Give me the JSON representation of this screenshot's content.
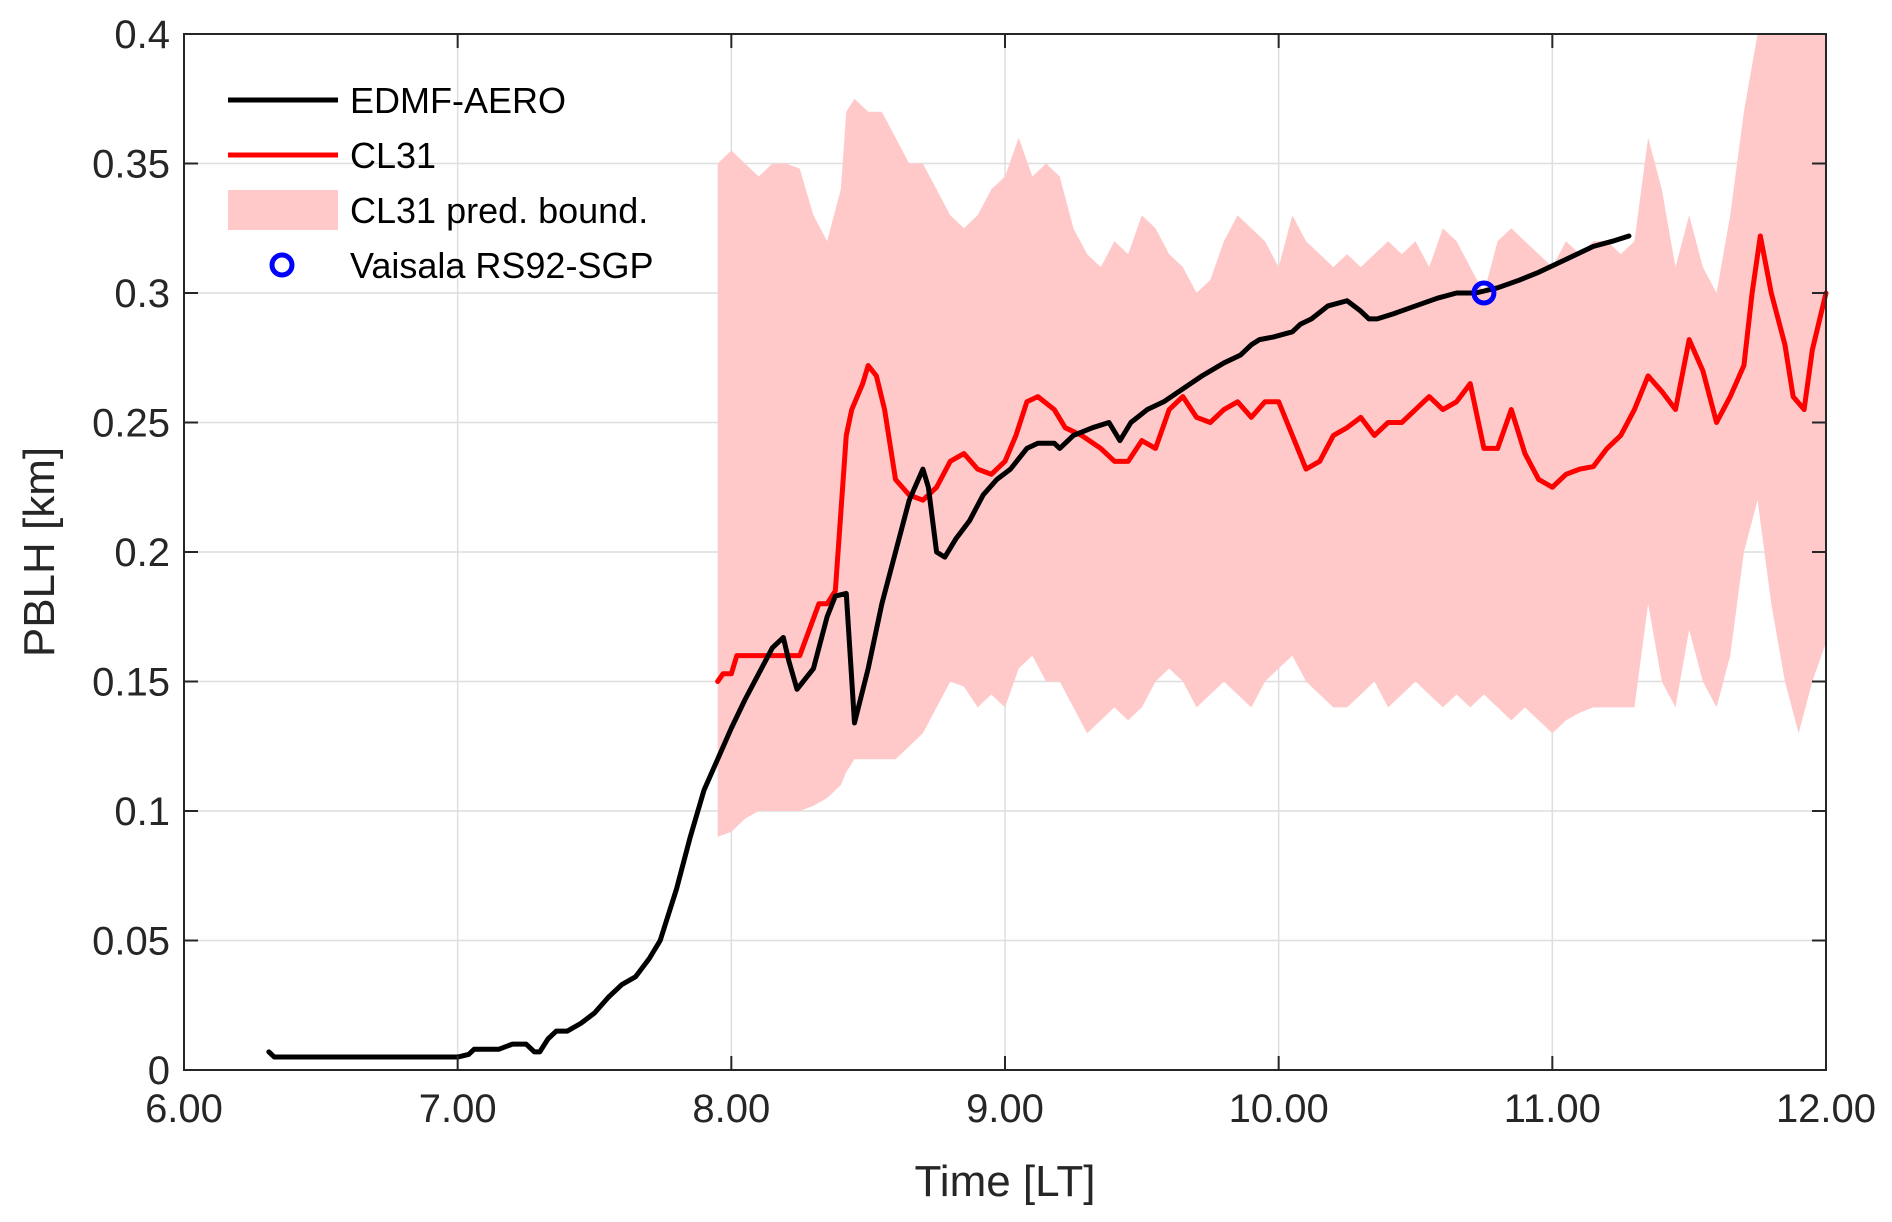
{
  "chart_data": {
    "type": "line",
    "title": "",
    "xlabel": "Time [LT]",
    "ylabel": "PBLH [km]",
    "xlim": [
      6,
      12
    ],
    "ylim": [
      0,
      0.4
    ],
    "grid": true,
    "legend_position": "top-left",
    "x_ticks": [
      6,
      7,
      8,
      9,
      10,
      11,
      12
    ],
    "x_tick_labels": [
      "6.00",
      "7.00",
      "8.00",
      "9.00",
      "10.00",
      "11.00",
      "12.00"
    ],
    "y_ticks": [
      0,
      0.05,
      0.1,
      0.15,
      0.2,
      0.25,
      0.3,
      0.35,
      0.4
    ],
    "y_tick_labels": [
      "0",
      "0.05",
      "0.1",
      "0.15",
      "0.2",
      "0.25",
      "0.3",
      "0.35",
      "0.4"
    ],
    "colors": {
      "edmf": "#000000",
      "cl31": "#ff0000",
      "band": "#ffc9c9",
      "rs92": "#0000ff",
      "grid": "#dedede",
      "axis": "#262626"
    },
    "legend": [
      {
        "key": "edmf",
        "label": "EDMF-AERO",
        "kind": "line"
      },
      {
        "key": "cl31",
        "label": "CL31",
        "kind": "line"
      },
      {
        "key": "band",
        "label": "CL31 pred. bound.",
        "kind": "patch"
      },
      {
        "key": "rs92",
        "label": "Vaisala RS92-SGP",
        "kind": "marker"
      }
    ],
    "series": [
      {
        "key": "edmf",
        "name": "EDMF-AERO",
        "x": [
          6.31,
          6.33,
          6.5,
          6.7,
          6.9,
          7.0,
          7.04,
          7.06,
          7.15,
          7.2,
          7.25,
          7.28,
          7.3,
          7.33,
          7.36,
          7.4,
          7.45,
          7.5,
          7.55,
          7.6,
          7.65,
          7.7,
          7.74,
          7.8,
          7.85,
          7.9,
          7.95,
          8.0,
          8.05,
          8.1,
          8.15,
          8.19,
          8.21,
          8.24,
          8.3,
          8.35,
          8.38,
          8.42,
          8.45,
          8.5,
          8.55,
          8.6,
          8.65,
          8.7,
          8.72,
          8.75,
          8.78,
          8.82,
          8.87,
          8.92,
          8.97,
          9.02,
          9.08,
          9.12,
          9.18,
          9.2,
          9.25,
          9.32,
          9.38,
          9.42,
          9.46,
          9.52,
          9.58,
          9.65,
          9.72,
          9.8,
          9.86,
          9.9,
          9.93,
          9.98,
          10.05,
          10.08,
          10.12,
          10.18,
          10.25,
          10.3,
          10.33,
          10.36,
          10.42,
          10.5,
          10.58,
          10.65,
          10.72,
          10.8,
          10.88,
          10.95,
          11.05,
          11.15,
          11.22,
          11.28
        ],
        "y": [
          0.007,
          0.005,
          0.005,
          0.005,
          0.005,
          0.005,
          0.006,
          0.008,
          0.008,
          0.01,
          0.01,
          0.007,
          0.007,
          0.012,
          0.015,
          0.015,
          0.018,
          0.022,
          0.028,
          0.033,
          0.036,
          0.043,
          0.05,
          0.07,
          0.09,
          0.108,
          0.12,
          0.132,
          0.143,
          0.153,
          0.163,
          0.167,
          0.158,
          0.147,
          0.155,
          0.175,
          0.183,
          0.184,
          0.134,
          0.155,
          0.18,
          0.2,
          0.22,
          0.232,
          0.225,
          0.2,
          0.198,
          0.205,
          0.212,
          0.222,
          0.228,
          0.232,
          0.24,
          0.242,
          0.242,
          0.24,
          0.245,
          0.248,
          0.25,
          0.243,
          0.25,
          0.255,
          0.258,
          0.263,
          0.268,
          0.273,
          0.276,
          0.28,
          0.282,
          0.283,
          0.285,
          0.288,
          0.29,
          0.295,
          0.297,
          0.293,
          0.29,
          0.29,
          0.292,
          0.295,
          0.298,
          0.3,
          0.3,
          0.302,
          0.305,
          0.308,
          0.313,
          0.318,
          0.32,
          0.322
        ]
      },
      {
        "key": "cl31",
        "name": "CL31",
        "x": [
          7.95,
          7.97,
          8.0,
          8.02,
          8.2,
          8.22,
          8.25,
          8.32,
          8.35,
          8.38,
          8.4,
          8.42,
          8.44,
          8.46,
          8.48,
          8.5,
          8.53,
          8.56,
          8.6,
          8.65,
          8.7,
          8.75,
          8.8,
          8.85,
          8.9,
          8.95,
          9.0,
          9.04,
          9.08,
          9.12,
          9.18,
          9.22,
          9.28,
          9.35,
          9.4,
          9.45,
          9.5,
          9.55,
          9.6,
          9.65,
          9.7,
          9.75,
          9.8,
          9.85,
          9.9,
          9.95,
          10.0,
          10.05,
          10.1,
          10.15,
          10.2,
          10.25,
          10.3,
          10.35,
          10.4,
          10.45,
          10.5,
          10.55,
          10.6,
          10.65,
          10.7,
          10.75,
          10.8,
          10.85,
          10.9,
          10.95,
          11.0,
          11.05,
          11.1,
          11.15,
          11.2,
          11.25,
          11.3,
          11.35,
          11.4,
          11.45,
          11.5,
          11.55,
          11.6,
          11.65,
          11.7,
          11.73,
          11.76,
          11.8,
          11.85,
          11.88,
          11.92,
          11.95,
          12.0
        ],
        "y": [
          0.15,
          0.153,
          0.153,
          0.16,
          0.16,
          0.16,
          0.16,
          0.18,
          0.18,
          0.185,
          0.215,
          0.245,
          0.255,
          0.26,
          0.265,
          0.272,
          0.268,
          0.255,
          0.228,
          0.222,
          0.22,
          0.225,
          0.235,
          0.238,
          0.232,
          0.23,
          0.235,
          0.245,
          0.258,
          0.26,
          0.255,
          0.248,
          0.245,
          0.24,
          0.235,
          0.235,
          0.243,
          0.24,
          0.255,
          0.26,
          0.252,
          0.25,
          0.255,
          0.258,
          0.252,
          0.258,
          0.258,
          0.245,
          0.232,
          0.235,
          0.245,
          0.248,
          0.252,
          0.245,
          0.25,
          0.25,
          0.255,
          0.26,
          0.255,
          0.258,
          0.265,
          0.24,
          0.24,
          0.255,
          0.238,
          0.228,
          0.225,
          0.23,
          0.232,
          0.233,
          0.24,
          0.245,
          0.255,
          0.268,
          0.262,
          0.255,
          0.282,
          0.27,
          0.25,
          0.26,
          0.272,
          0.3,
          0.322,
          0.3,
          0.28,
          0.26,
          0.255,
          0.278,
          0.3
        ]
      }
    ],
    "band": {
      "key": "band",
      "name": "CL31 pred. bound.",
      "x": [
        7.95,
        8.0,
        8.05,
        8.1,
        8.15,
        8.2,
        8.25,
        8.3,
        8.35,
        8.4,
        8.42,
        8.45,
        8.5,
        8.55,
        8.6,
        8.65,
        8.7,
        8.75,
        8.8,
        8.85,
        8.9,
        8.95,
        9.0,
        9.05,
        9.1,
        9.15,
        9.2,
        9.25,
        9.3,
        9.35,
        9.4,
        9.45,
        9.5,
        9.55,
        9.6,
        9.65,
        9.7,
        9.75,
        9.8,
        9.85,
        9.9,
        9.95,
        10.0,
        10.05,
        10.1,
        10.15,
        10.2,
        10.25,
        10.3,
        10.35,
        10.4,
        10.45,
        10.5,
        10.55,
        10.6,
        10.65,
        10.7,
        10.75,
        10.8,
        10.85,
        10.9,
        10.95,
        11.0,
        11.05,
        11.1,
        11.15,
        11.2,
        11.25,
        11.3,
        11.35,
        11.4,
        11.45,
        11.5,
        11.55,
        11.6,
        11.65,
        11.7,
        11.75,
        11.8,
        11.85,
        11.9,
        11.95,
        12.0
      ],
      "upper": [
        0.35,
        0.355,
        0.35,
        0.345,
        0.35,
        0.35,
        0.348,
        0.33,
        0.32,
        0.34,
        0.37,
        0.375,
        0.37,
        0.37,
        0.36,
        0.35,
        0.35,
        0.34,
        0.33,
        0.325,
        0.33,
        0.34,
        0.345,
        0.36,
        0.345,
        0.35,
        0.345,
        0.325,
        0.315,
        0.31,
        0.32,
        0.315,
        0.33,
        0.325,
        0.315,
        0.31,
        0.3,
        0.305,
        0.32,
        0.33,
        0.325,
        0.32,
        0.31,
        0.33,
        0.32,
        0.315,
        0.31,
        0.315,
        0.31,
        0.315,
        0.32,
        0.315,
        0.32,
        0.31,
        0.325,
        0.32,
        0.31,
        0.3,
        0.32,
        0.325,
        0.32,
        0.315,
        0.31,
        0.32,
        0.315,
        0.32,
        0.32,
        0.315,
        0.32,
        0.36,
        0.34,
        0.31,
        0.33,
        0.31,
        0.3,
        0.33,
        0.37,
        0.4,
        0.4,
        0.4,
        0.4,
        0.4,
        0.4
      ],
      "lower": [
        0.09,
        0.092,
        0.097,
        0.1,
        0.1,
        0.1,
        0.1,
        0.102,
        0.105,
        0.11,
        0.115,
        0.12,
        0.12,
        0.12,
        0.12,
        0.125,
        0.13,
        0.14,
        0.15,
        0.148,
        0.14,
        0.145,
        0.14,
        0.155,
        0.16,
        0.15,
        0.15,
        0.14,
        0.13,
        0.135,
        0.14,
        0.135,
        0.14,
        0.15,
        0.155,
        0.15,
        0.14,
        0.145,
        0.15,
        0.145,
        0.14,
        0.15,
        0.155,
        0.16,
        0.15,
        0.145,
        0.14,
        0.14,
        0.145,
        0.15,
        0.14,
        0.145,
        0.15,
        0.145,
        0.14,
        0.145,
        0.14,
        0.145,
        0.14,
        0.135,
        0.14,
        0.135,
        0.13,
        0.135,
        0.138,
        0.14,
        0.14,
        0.14,
        0.14,
        0.18,
        0.15,
        0.14,
        0.17,
        0.15,
        0.14,
        0.16,
        0.2,
        0.22,
        0.18,
        0.15,
        0.13,
        0.15,
        0.165
      ]
    },
    "markers": [
      {
        "key": "rs92",
        "name": "Vaisala RS92-SGP",
        "x": 10.75,
        "y": 0.3
      }
    ]
  }
}
